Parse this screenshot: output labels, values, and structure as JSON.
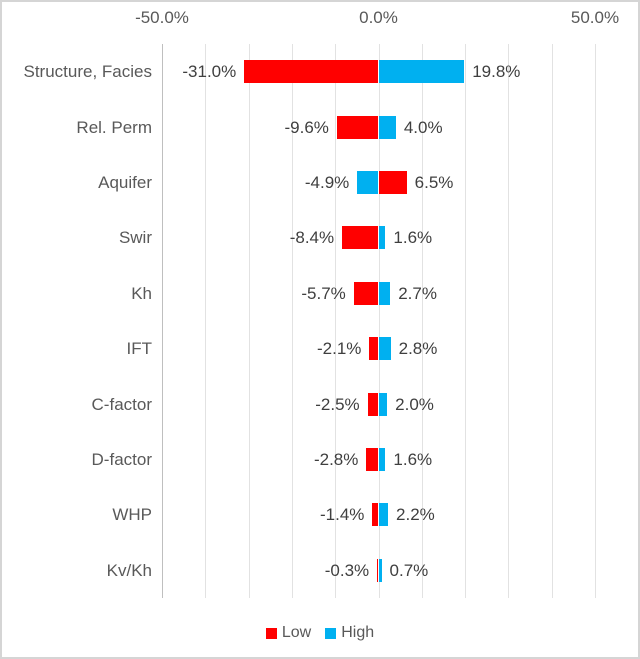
{
  "chart": {
    "x_axis": {
      "min": -50,
      "max": 50,
      "gridline_step": 10,
      "ticks": [
        {
          "label": "-50.0%",
          "value": -50
        },
        {
          "label": "0.0%",
          "value": 0
        },
        {
          "label": "50.0%",
          "value": 50
        }
      ]
    },
    "series_colors": {
      "Low": "#ff0000",
      "High": "#00b0f0"
    },
    "rows": [
      {
        "category": "Structure, Facies",
        "left": {
          "series": "Low",
          "value": -31.0,
          "label": "-31.0%"
        },
        "right": {
          "series": "High",
          "value": 19.8,
          "label": "19.8%"
        }
      },
      {
        "category": "Rel. Perm",
        "left": {
          "series": "Low",
          "value": -9.6,
          "label": "-9.6%"
        },
        "right": {
          "series": "High",
          "value": 4.0,
          "label": "4.0%"
        }
      },
      {
        "category": "Aquifer",
        "left": {
          "series": "High",
          "value": -4.9,
          "label": "-4.9%"
        },
        "right": {
          "series": "Low",
          "value": 6.5,
          "label": "6.5%"
        }
      },
      {
        "category": "Swir",
        "left": {
          "series": "Low",
          "value": -8.4,
          "label": "-8.4%"
        },
        "right": {
          "series": "High",
          "value": 1.6,
          "label": "1.6%"
        }
      },
      {
        "category": "Kh",
        "left": {
          "series": "Low",
          "value": -5.7,
          "label": "-5.7%"
        },
        "right": {
          "series": "High",
          "value": 2.7,
          "label": "2.7%"
        }
      },
      {
        "category": "IFT",
        "left": {
          "series": "Low",
          "value": -2.1,
          "label": "-2.1%"
        },
        "right": {
          "series": "High",
          "value": 2.8,
          "label": "2.8%"
        }
      },
      {
        "category": "C-factor",
        "left": {
          "series": "Low",
          "value": -2.5,
          "label": "-2.5%"
        },
        "right": {
          "series": "High",
          "value": 2.0,
          "label": "2.0%"
        }
      },
      {
        "category": "D-factor",
        "left": {
          "series": "Low",
          "value": -2.8,
          "label": "-2.8%"
        },
        "right": {
          "series": "High",
          "value": 1.6,
          "label": "1.6%"
        }
      },
      {
        "category": "WHP",
        "left": {
          "series": "Low",
          "value": -1.4,
          "label": "-1.4%"
        },
        "right": {
          "series": "High",
          "value": 2.2,
          "label": "2.2%"
        }
      },
      {
        "category": "Kv/Kh",
        "left": {
          "series": "Low",
          "value": -0.3,
          "label": "-0.3%"
        },
        "right": {
          "series": "High",
          "value": 0.7,
          "label": "0.7%"
        }
      }
    ],
    "legend": [
      {
        "label": "Low",
        "color": "#ff0000"
      },
      {
        "label": "High",
        "color": "#00b0f0"
      }
    ]
  },
  "chart_data": {
    "type": "bar",
    "subtype": "tornado",
    "orientation": "horizontal",
    "title": "",
    "xlabel": "",
    "ylabel": "",
    "xlim": [
      -50,
      50
    ],
    "x_tick_labels": [
      "-50.0%",
      "0.0%",
      "50.0%"
    ],
    "grid": true,
    "gridline_step_percent": 10,
    "legend_position": "bottom",
    "categories": [
      "Structure, Facies",
      "Rel. Perm",
      "Aquifer",
      "Swir",
      "Kh",
      "IFT",
      "C-factor",
      "D-factor",
      "WHP",
      "Kv/Kh"
    ],
    "series": [
      {
        "name": "Low",
        "color": "#ff0000",
        "values": [
          -31.0,
          -9.6,
          6.5,
          -8.4,
          -5.7,
          -2.1,
          -2.5,
          -2.8,
          -1.4,
          -0.3
        ]
      },
      {
        "name": "High",
        "color": "#00b0f0",
        "values": [
          19.8,
          4.0,
          -4.9,
          1.6,
          2.7,
          2.8,
          2.0,
          1.6,
          2.2,
          0.7
        ]
      }
    ],
    "data_labels": {
      "left": [
        "-31.0%",
        "-9.6%",
        "-4.9%",
        "-8.4%",
        "-5.7%",
        "-2.1%",
        "-2.5%",
        "-2.8%",
        "-1.4%",
        "-0.3%"
      ],
      "right": [
        "19.8%",
        "4.0%",
        "6.5%",
        "1.6%",
        "2.7%",
        "2.8%",
        "2.0%",
        "1.6%",
        "2.2%",
        "0.7%"
      ]
    }
  }
}
